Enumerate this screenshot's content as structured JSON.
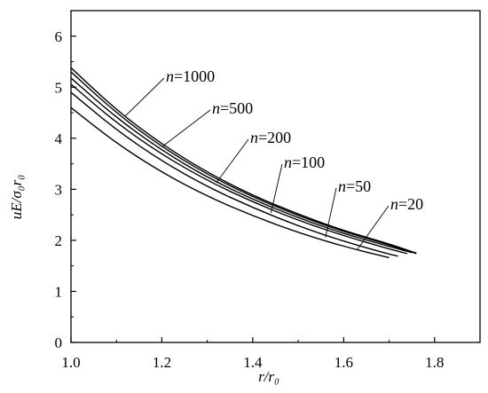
{
  "chart_data": {
    "type": "line",
    "title": "",
    "xlabel": "r/r₀",
    "ylabel": "uE/σ₀r₀",
    "xlim": [
      1.0,
      1.9
    ],
    "ylim": [
      0,
      6.5
    ],
    "x_ticks": [
      "1.0",
      "1.2",
      "1.4",
      "1.6",
      "1.8"
    ],
    "y_ticks": [
      "0",
      "1",
      "2",
      "3",
      "4",
      "5",
      "6"
    ],
    "grid": false,
    "legend": "annotations with leader lines",
    "line_color": "#000000",
    "series": [
      {
        "name": "n=1000",
        "label_var": "n",
        "label_value": "=1000",
        "x": [
          1.0,
          1.1,
          1.2,
          1.3,
          1.4,
          1.5,
          1.6,
          1.7,
          1.76
        ],
        "y": [
          5.38,
          4.55,
          3.88,
          3.33,
          2.88,
          2.51,
          2.19,
          1.93,
          1.75
        ],
        "label_anchor": [
          1.12,
          4.44
        ]
      },
      {
        "name": "n=500",
        "label_var": "n",
        "label_value": "=500",
        "x": [
          1.0,
          1.1,
          1.2,
          1.3,
          1.4,
          1.5,
          1.6,
          1.7,
          1.76
        ],
        "y": [
          5.3,
          4.49,
          3.83,
          3.29,
          2.85,
          2.48,
          2.17,
          1.91,
          1.74
        ],
        "label_anchor": [
          1.2,
          3.83
        ]
      },
      {
        "name": "n=200",
        "label_var": "n",
        "label_value": "=200",
        "x": [
          1.0,
          1.1,
          1.2,
          1.3,
          1.4,
          1.5,
          1.6,
          1.7,
          1.75
        ],
        "y": [
          5.18,
          4.4,
          3.76,
          3.23,
          2.8,
          2.44,
          2.13,
          1.88,
          1.76
        ],
        "label_anchor": [
          1.32,
          3.13
        ]
      },
      {
        "name": "n=100",
        "label_var": "n",
        "label_value": "=100",
        "x": [
          1.0,
          1.1,
          1.2,
          1.3,
          1.4,
          1.5,
          1.6,
          1.7,
          1.74
        ],
        "y": [
          5.06,
          4.3,
          3.68,
          3.17,
          2.75,
          2.39,
          2.09,
          1.83,
          1.74
        ],
        "label_anchor": [
          1.44,
          2.54
        ]
      },
      {
        "name": "n=50",
        "label_var": "n",
        "label_value": "=50",
        "x": [
          1.0,
          1.1,
          1.2,
          1.3,
          1.4,
          1.5,
          1.6,
          1.7,
          1.72
        ],
        "y": [
          4.9,
          4.16,
          3.55,
          3.05,
          2.64,
          2.28,
          1.98,
          1.73,
          1.69
        ],
        "label_anchor": [
          1.56,
          2.06
        ]
      },
      {
        "name": "n=20",
        "label_var": "n",
        "label_value": "=20",
        "x": [
          1.0,
          1.1,
          1.2,
          1.3,
          1.4,
          1.5,
          1.6,
          1.7
        ],
        "y": [
          4.6,
          3.9,
          3.33,
          2.86,
          2.48,
          2.15,
          1.88,
          1.66
        ],
        "label_anchor": [
          1.63,
          1.82
        ]
      }
    ]
  }
}
